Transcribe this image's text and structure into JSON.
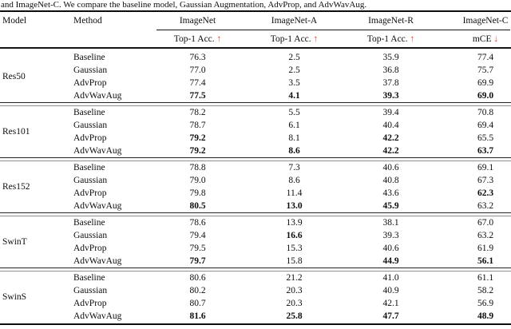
{
  "caption": "and ImageNet-C. We compare the baseline model, Gaussian Augmentation, AdvProp, and AdvWavAug.",
  "header": {
    "model": "Model",
    "method": "Method",
    "datasets": [
      "ImageNet",
      "ImageNet-A",
      "ImageNet-R",
      "ImageNet-C"
    ],
    "metrics": [
      {
        "label": "Top-1 Acc.",
        "arrow": "↑"
      },
      {
        "label": "Top-1 Acc.",
        "arrow": "↑"
      },
      {
        "label": "Top-1 Acc.",
        "arrow": "↑"
      },
      {
        "label": "mCE",
        "arrow": "↓"
      }
    ],
    "arrow_color": "#e8392e"
  },
  "table": {
    "blocks": [
      {
        "model": "Res50",
        "rows": [
          {
            "method": "Baseline",
            "values": [
              "76.3",
              "2.5",
              "35.9",
              "77.4"
            ],
            "bold": [
              false,
              false,
              false,
              false
            ]
          },
          {
            "method": "Gaussian",
            "values": [
              "77.0",
              "2.5",
              "36.8",
              "75.7"
            ],
            "bold": [
              false,
              false,
              false,
              false
            ]
          },
          {
            "method": "AdvProp",
            "values": [
              "77.4",
              "3.5",
              "37.8",
              "69.9"
            ],
            "bold": [
              false,
              false,
              false,
              false
            ]
          },
          {
            "method": "AdvWavAug",
            "values": [
              "77.5",
              "4.1",
              "39.3",
              "69.0"
            ],
            "bold": [
              true,
              true,
              true,
              true
            ]
          }
        ]
      },
      {
        "model": "Res101",
        "rows": [
          {
            "method": "Baseline",
            "values": [
              "78.2",
              "5.5",
              "39.4",
              "70.8"
            ],
            "bold": [
              false,
              false,
              false,
              false
            ]
          },
          {
            "method": "Gaussian",
            "values": [
              "78.7",
              "6.1",
              "40.4",
              "69.4"
            ],
            "bold": [
              false,
              false,
              false,
              false
            ]
          },
          {
            "method": "AdvProp",
            "values": [
              "79.2",
              "8.1",
              "42.2",
              "65.5"
            ],
            "bold": [
              true,
              false,
              true,
              false
            ]
          },
          {
            "method": "AdvWavAug",
            "values": [
              "79.2",
              "8.6",
              "42.2",
              "63.7"
            ],
            "bold": [
              true,
              true,
              true,
              true
            ]
          }
        ]
      },
      {
        "model": "Res152",
        "rows": [
          {
            "method": "Baseline",
            "values": [
              "78.8",
              "7.3",
              "40.6",
              "69.1"
            ],
            "bold": [
              false,
              false,
              false,
              false
            ]
          },
          {
            "method": "Gaussian",
            "values": [
              "79.0",
              "8.6",
              "40.8",
              "67.3"
            ],
            "bold": [
              false,
              false,
              false,
              false
            ]
          },
          {
            "method": "AdvProp",
            "values": [
              "79.8",
              "11.4",
              "43.6",
              "62.3"
            ],
            "bold": [
              false,
              false,
              false,
              true
            ]
          },
          {
            "method": "AdvWavAug",
            "values": [
              "80.5",
              "13.0",
              "45.9",
              "63.2"
            ],
            "bold": [
              true,
              true,
              true,
              false
            ]
          }
        ]
      },
      {
        "model": "SwinT",
        "rows": [
          {
            "method": "Baseline",
            "values": [
              "78.6",
              "13.9",
              "38.1",
              "67.0"
            ],
            "bold": [
              false,
              false,
              false,
              false
            ]
          },
          {
            "method": "Gaussian",
            "values": [
              "79.4",
              "16.6",
              "39.3",
              "63.2"
            ],
            "bold": [
              false,
              true,
              false,
              false
            ]
          },
          {
            "method": "AdvProp",
            "values": [
              "79.5",
              "15.3",
              "40.6",
              "61.9"
            ],
            "bold": [
              false,
              false,
              false,
              false
            ]
          },
          {
            "method": "AdvWavAug",
            "values": [
              "79.7",
              "15.8",
              "44.9",
              "56.1"
            ],
            "bold": [
              true,
              false,
              true,
              true
            ]
          }
        ]
      },
      {
        "model": "SwinS",
        "rows": [
          {
            "method": "Baseline",
            "values": [
              "80.6",
              "21.2",
              "41.0",
              "61.1"
            ],
            "bold": [
              false,
              false,
              false,
              false
            ]
          },
          {
            "method": "Gaussian",
            "values": [
              "80.2",
              "20.3",
              "40.9",
              "58.2"
            ],
            "bold": [
              false,
              false,
              false,
              false
            ]
          },
          {
            "method": "AdvProp",
            "values": [
              "80.7",
              "20.3",
              "42.1",
              "56.9"
            ],
            "bold": [
              false,
              false,
              false,
              false
            ]
          },
          {
            "method": "AdvWavAug",
            "values": [
              "81.6",
              "25.8",
              "47.7",
              "48.9"
            ],
            "bold": [
              true,
              true,
              true,
              true
            ]
          }
        ]
      }
    ]
  }
}
